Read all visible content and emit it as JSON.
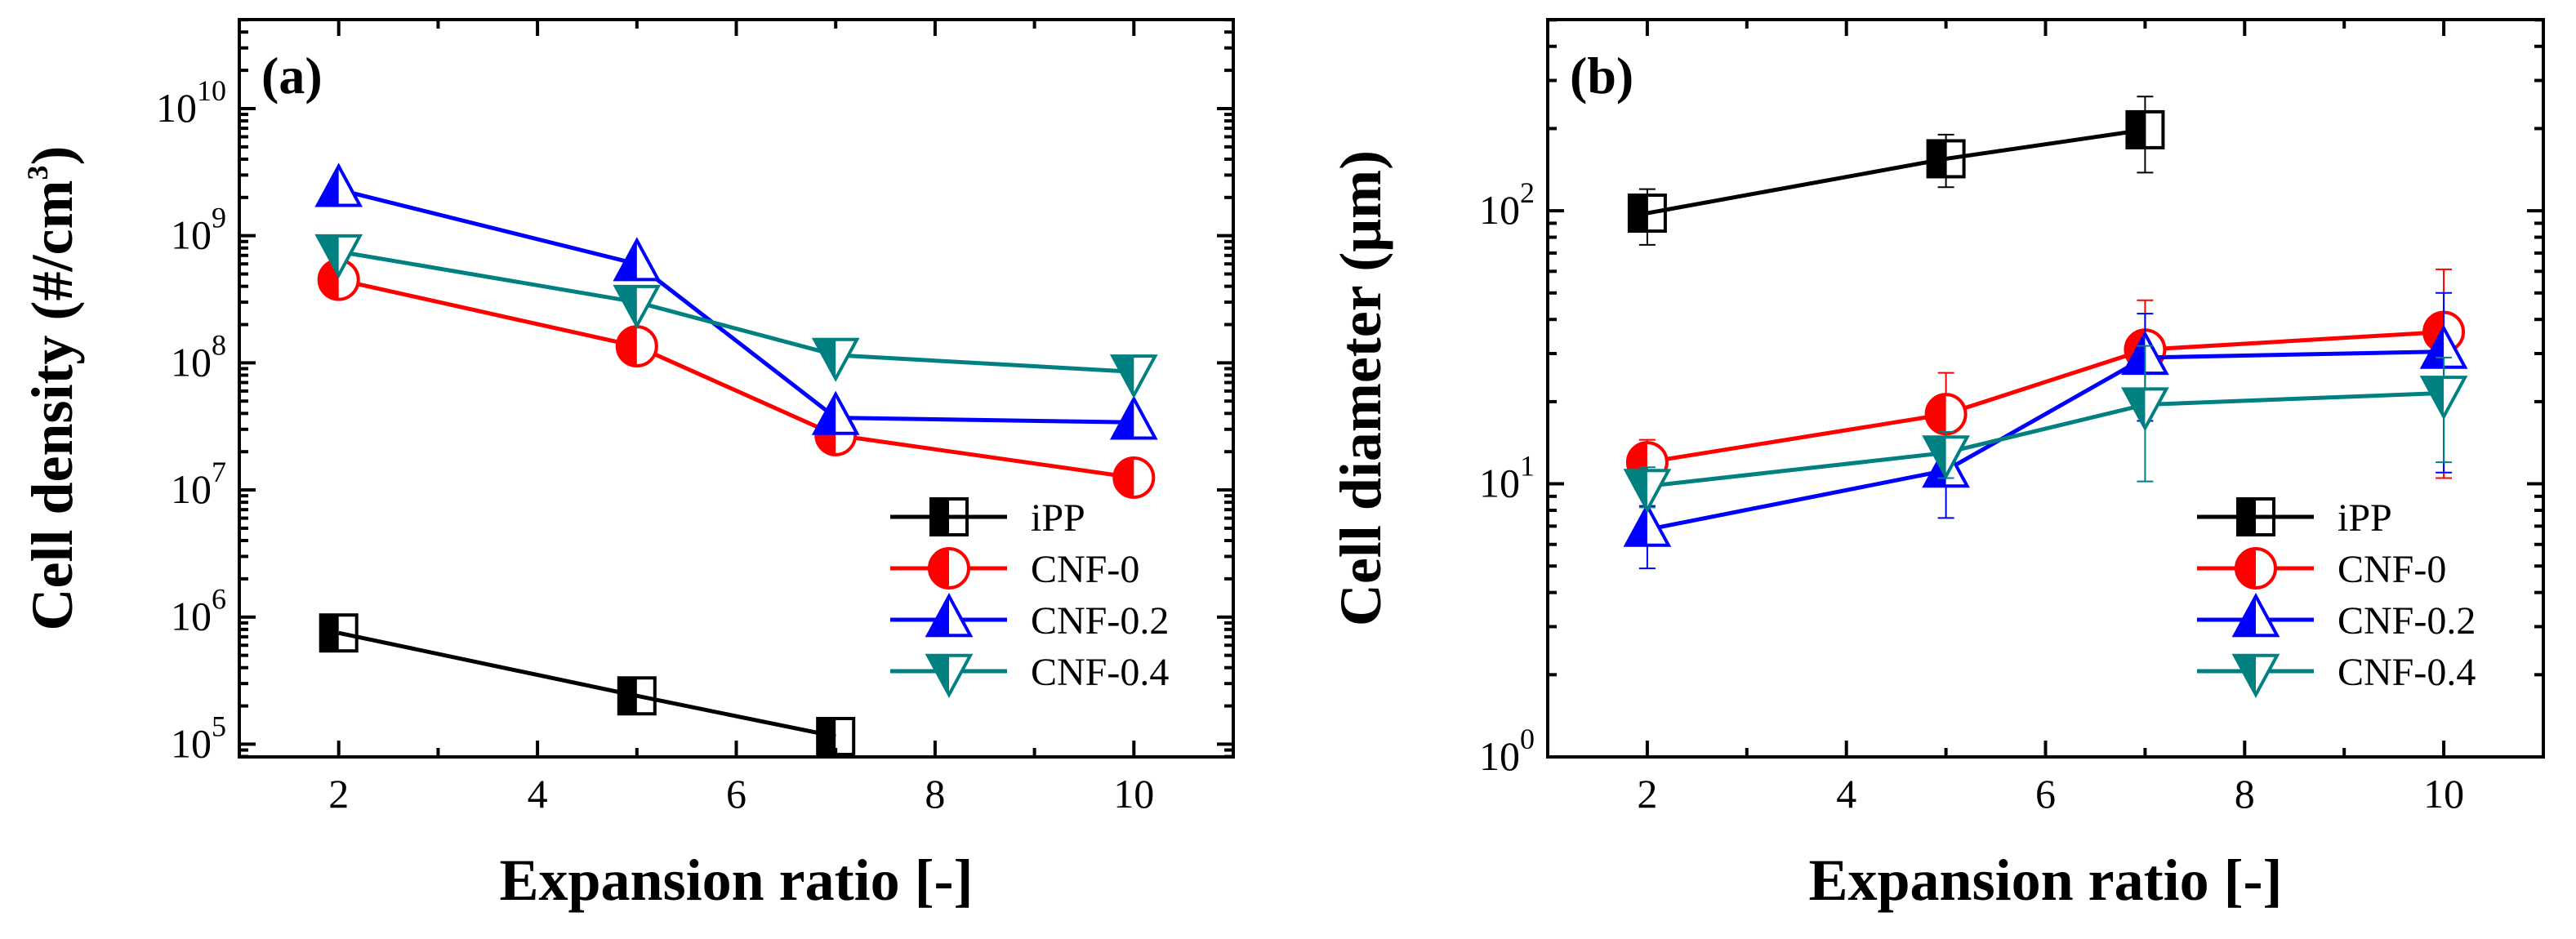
{
  "chart_data": [
    {
      "type": "line",
      "panel_label": "(a)",
      "xlabel": "Expansion ratio [-]",
      "ylabel": {
        "base": "Cell density (#/cm",
        "sup": "3",
        "close": ")"
      },
      "yscale": "log",
      "xlim": [
        1,
        11
      ],
      "ylim_exp": [
        4.9,
        10.7
      ],
      "x_ticks": [
        2,
        4,
        6,
        8,
        10
      ],
      "x_tick_labels": [
        "2",
        "4",
        "6",
        "8",
        "10"
      ],
      "y_ticks": [
        {
          "exp": 5,
          "base": "10",
          "sup": "5"
        },
        {
          "exp": 6,
          "base": "10",
          "sup": "6"
        },
        {
          "exp": 7,
          "base": "10",
          "sup": "7"
        },
        {
          "exp": 8,
          "base": "10",
          "sup": "8"
        },
        {
          "exp": 9,
          "base": "10",
          "sup": "9"
        },
        {
          "exp": 10,
          "base": "10",
          "sup": "10"
        }
      ],
      "legend_position": "lower-right",
      "series": [
        {
          "name": "iPP",
          "color": "#000000",
          "marker": "half-square",
          "x": [
            2,
            5,
            7
          ],
          "y": [
            750000,
            240000,
            115000
          ]
        },
        {
          "name": "CNF-0",
          "color": "#ff0000",
          "marker": "half-circle",
          "x": [
            2,
            5,
            7,
            10
          ],
          "y": [
            450000000,
            135000000,
            27000000,
            12500000
          ]
        },
        {
          "name": "CNF-0.2",
          "color": "#0000ff",
          "marker": "half-triangle-up",
          "x": [
            2,
            5,
            7,
            10
          ],
          "y": [
            2300000000,
            600000000,
            37000000,
            34000000
          ]
        },
        {
          "name": "CNF-0.4",
          "color": "#008080",
          "marker": "half-triangle-down",
          "x": [
            2,
            5,
            7,
            10
          ],
          "y": [
            750000000,
            300000000,
            115000000,
            85000000
          ]
        }
      ]
    },
    {
      "type": "line",
      "panel_label": "(b)",
      "xlabel": "Expansion ratio [-]",
      "ylabel": {
        "base": "Cell diameter (μm)"
      },
      "yscale": "log",
      "xlim": [
        1,
        11
      ],
      "ylim_exp": [
        0,
        2.7
      ],
      "x_ticks": [
        2,
        4,
        6,
        8,
        10
      ],
      "x_tick_labels": [
        "2",
        "4",
        "6",
        "8",
        "10"
      ],
      "y_ticks": [
        {
          "exp": 0,
          "base": "10",
          "sup": "0"
        },
        {
          "exp": 1,
          "base": "10",
          "sup": "1"
        },
        {
          "exp": 2,
          "base": "10",
          "sup": "2"
        }
      ],
      "legend_position": "lower-right",
      "series": [
        {
          "name": "iPP",
          "color": "#000000",
          "marker": "half-square",
          "x": [
            2,
            5,
            7
          ],
          "y": [
            98,
            155,
            198
          ],
          "yerr_low": [
            75,
            122,
            138
          ],
          "yerr_high": [
            120,
            190,
            262
          ]
        },
        {
          "name": "CNF-0",
          "color": "#ff0000",
          "marker": "half-circle",
          "x": [
            2,
            5,
            7,
            10
          ],
          "y": [
            12,
            18,
            31,
            36
          ],
          "yerr_low": [
            10,
            13,
            17,
            10.5
          ],
          "yerr_high": [
            14.5,
            25.5,
            47,
            61
          ]
        },
        {
          "name": "CNF-0.2",
          "color": "#0000ff",
          "marker": "half-triangle-up",
          "x": [
            2,
            5,
            7,
            10
          ],
          "y": [
            6.8,
            11.2,
            29,
            30.5
          ],
          "yerr_low": [
            4.9,
            7.5,
            17,
            11
          ],
          "yerr_high": [
            8.3,
            14,
            42,
            50
          ]
        },
        {
          "name": "CNF-0.4",
          "color": "#008080",
          "marker": "half-triangle-down",
          "x": [
            2,
            5,
            7,
            10
          ],
          "y": [
            9.8,
            13,
            19.5,
            21.5
          ],
          "yerr_low": [
            8.2,
            10.5,
            10.2,
            12
          ],
          "yerr_high": [
            11.5,
            15.5,
            32,
            29
          ]
        }
      ]
    }
  ]
}
